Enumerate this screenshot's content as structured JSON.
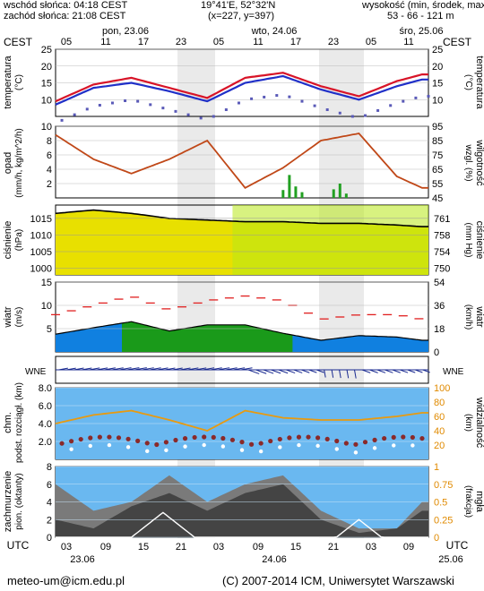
{
  "header": {
    "sunrise": "wschód słońca: 04:18 CEST",
    "sunset": "zachód słońca: 21:08 CEST",
    "coords": "19°41'E, 52°32'N",
    "grid": "(x=227, y=397)",
    "elev_title": "wysokość (min, środek, max)",
    "elev_values": "53 - 66 - 121 m"
  },
  "time_axis": {
    "tz_top": "CEST",
    "tz_bottom": "UTC",
    "days": [
      "pon, 23.06",
      "wto, 24.06",
      "śro, 25.06"
    ],
    "top_hours": [
      "05",
      "11",
      "17",
      "23",
      "05",
      "11",
      "17",
      "23",
      "05",
      "11"
    ],
    "bottom_hours": [
      "03",
      "09",
      "15",
      "21",
      "03",
      "09",
      "15",
      "21",
      "03",
      "09"
    ],
    "bottom_dates": [
      "23.06",
      "24.06",
      "25.06"
    ]
  },
  "footer": {
    "email": "meteo-um@icm.edu.pl",
    "copyright": "(C) 2007-2014 ICM, Uniwersytet Warszawski"
  },
  "colors": {
    "temp_line": "#d81428",
    "dew_line": "#2030c8",
    "panel_bg": "#ffffff",
    "humidity_line": "#c04818",
    "precip_bar": "#22a022",
    "pressure_fill_top": "#e8e000",
    "pressure_fill_green": "#b8e818",
    "wind_area": "#1a9a1a",
    "wind_base": "#1080e0",
    "gust_marks": "#e02020",
    "night_shade": "#d8d8d8",
    "cloud_panel_bg": "#6ab8f0",
    "cloud_low": "#444444",
    "cloud_mid": "#7a7a7a",
    "visibility_line": "#e89a10",
    "fog_line": "#ffffff"
  },
  "chart_data": [
    {
      "type": "line",
      "panel": "temperature",
      "ylabel_left": "temperatura (°C)",
      "ylabel_right": "temperatura (°C)",
      "ylim": [
        5,
        25
      ],
      "ticks": [
        10,
        15,
        20,
        25
      ],
      "x_hours_utc": [
        0,
        6,
        12,
        18,
        24,
        30,
        36,
        42,
        48,
        54,
        58
      ],
      "series": [
        {
          "values": [
            9.5,
            14.5,
            16.5,
            13.5,
            10.5,
            16.5,
            18,
            14,
            11,
            15.5,
            17.5
          ]
        },
        {
          "values": [
            8.5,
            13.5,
            15,
            12.5,
            9.5,
            15,
            17,
            13,
            10,
            14,
            16
          ]
        }
      ]
    },
    {
      "type": "line",
      "panel": "precipitation_humidity",
      "ylabel_left": "opad (mm/h, kg/m^2/h)",
      "ylabel_right": "wilgotność wzgl. (%)",
      "ylim_left": [
        0,
        10
      ],
      "ticks_left": [
        2,
        4,
        6,
        8,
        10
      ],
      "ylim_right": [
        45,
        95
      ],
      "ticks_right": [
        45,
        55,
        65,
        75,
        85,
        95
      ],
      "x_hours_utc": [
        0,
        6,
        12,
        18,
        24,
        30,
        36,
        42,
        48,
        54,
        58
      ],
      "humidity": [
        89,
        72,
        62,
        72,
        85,
        52,
        66,
        85,
        90,
        60,
        52
      ],
      "precip_peak_mm": 3.2
    },
    {
      "type": "area",
      "panel": "pressure",
      "ylabel_left": "ciśnienie (hPa)",
      "ylabel_right": "ciśnienie (mm Hg)",
      "ylim": [
        1000,
        1015
      ],
      "ticks_left": [
        1000,
        1005,
        1010,
        1015
      ],
      "ticks_right": [
        750,
        754,
        758,
        761
      ],
      "x_hours_utc": [
        0,
        6,
        12,
        18,
        24,
        30,
        36,
        42,
        48,
        54,
        58
      ],
      "values": [
        1016.5,
        1017.5,
        1016.5,
        1015,
        1014.5,
        1014,
        1014,
        1013.5,
        1013.5,
        1013,
        1012.5
      ]
    },
    {
      "type": "area",
      "panel": "wind",
      "ylabel_left": "wiatr (m/s)",
      "ylabel_right": "wiatr (km/h)",
      "ylim": [
        0,
        15
      ],
      "ticks_left": [
        5,
        10,
        15
      ],
      "ticks_right": [
        0,
        18,
        36,
        54
      ],
      "x_hours_utc": [
        0,
        6,
        12,
        18,
        24,
        30,
        36,
        42,
        48,
        54,
        58
      ],
      "speed": [
        3.8,
        5.2,
        6.5,
        4.5,
        5.8,
        5.8,
        4,
        2.5,
        3.5,
        3.2,
        2.5
      ],
      "gusts": [
        8,
        10,
        12,
        9,
        11,
        12,
        11,
        7,
        8,
        8,
        7
      ]
    },
    {
      "type": "line",
      "panel": "cloud_base_visibility",
      "ylabel_left": "chm. podst. rozciągł. (km)",
      "ylabel_right": "widzialność (km)",
      "ylim": [
        0,
        8
      ],
      "ticks_left": [
        2,
        4,
        6,
        8
      ],
      "ticks_right": [
        20,
        40,
        60,
        80,
        100
      ],
      "x_hours_utc": [
        0,
        6,
        12,
        18,
        24,
        30,
        36,
        42,
        48,
        54,
        58
      ],
      "visibility_km": [
        50,
        62,
        68,
        55,
        40,
        68,
        58,
        55,
        55,
        60,
        65
      ]
    },
    {
      "type": "area",
      "panel": "cloud_cover_fog",
      "ylabel_left": "zachmurzenie pion. (oktanty)",
      "ylabel_right": "mgła (frakcja)",
      "ylim": [
        0,
        8
      ],
      "ticks_left": [
        0,
        2,
        4,
        6,
        8
      ],
      "ticks_right": [
        0,
        0.25,
        0.5,
        0.75,
        1
      ],
      "x_hours_utc": [
        0,
        6,
        12,
        18,
        24,
        30,
        36,
        42,
        48,
        54,
        58
      ],
      "low_clouds": [
        2,
        1,
        3.5,
        5,
        3,
        5,
        6,
        2,
        0.5,
        1,
        3
      ],
      "mid_clouds": [
        6,
        3,
        4,
        7,
        4,
        6,
        7,
        3,
        1,
        1,
        4
      ]
    }
  ]
}
